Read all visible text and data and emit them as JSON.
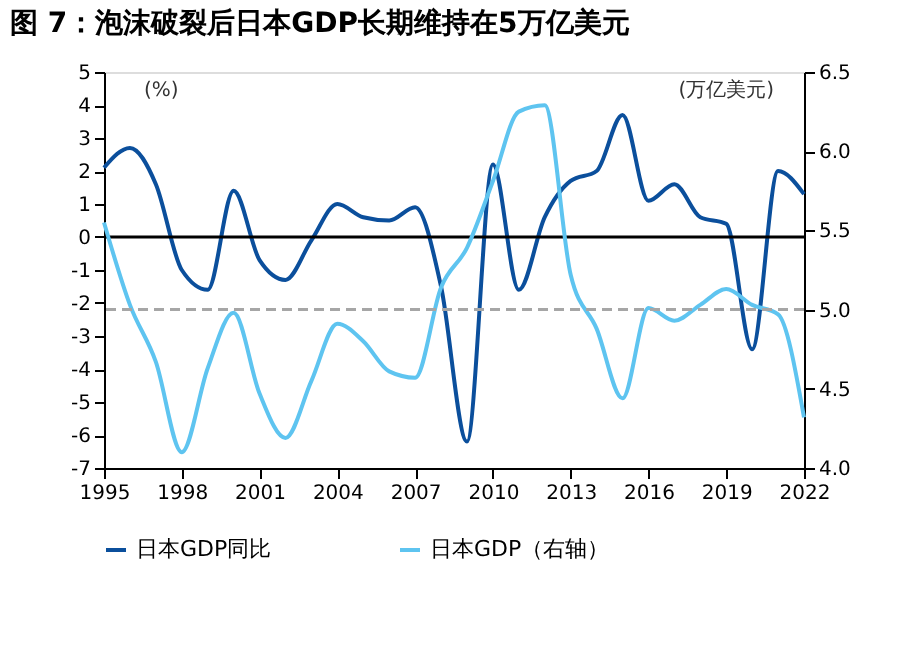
{
  "chart_data": {
    "type": "line",
    "title": "图 7：泡沫破裂后日本GDP长期维持在5万亿美元",
    "x": [
      1995,
      1996,
      1997,
      1998,
      1999,
      2000,
      2001,
      2002,
      2003,
      2004,
      2005,
      2006,
      2007,
      2008,
      2009,
      2010,
      2011,
      2012,
      2013,
      2014,
      2015,
      2016,
      2017,
      2018,
      2019,
      2020,
      2021,
      2022
    ],
    "series": [
      {
        "name": "日本GDP同比",
        "color": "#0b4f9c",
        "values": [
          2.1,
          2.7,
          1.6,
          -1.0,
          -1.6,
          1.4,
          -0.7,
          -1.3,
          -0.1,
          1.0,
          0.6,
          0.5,
          0.9,
          -1.5,
          -6.2,
          2.2,
          -1.6,
          0.6,
          1.7,
          2.0,
          3.7,
          1.1,
          1.6,
          0.6,
          0.4,
          -3.4,
          2.0,
          1.3
        ]
      },
      {
        "name": "日本GDP（右轴）",
        "color": "#5ec4f0",
        "axis": "y2",
        "values": [
          5.55,
          5.03,
          4.67,
          4.1,
          4.63,
          4.98,
          4.47,
          4.19,
          4.55,
          4.91,
          4.8,
          4.61,
          4.57,
          5.14,
          5.39,
          5.81,
          6.25,
          6.29,
          5.22,
          4.88,
          4.44,
          5.01,
          4.93,
          5.03,
          5.13,
          5.03,
          4.97,
          4.32
        ]
      }
    ],
    "xlim": [
      1995,
      2022
    ],
    "xticks": [
      1995,
      1998,
      2001,
      2004,
      2007,
      2010,
      2013,
      2016,
      2019,
      2022
    ],
    "ylim": [
      -7,
      5
    ],
    "yticks": [
      -7,
      -6,
      -5,
      -4,
      -3,
      -2,
      -1,
      0,
      1,
      2,
      3,
      4,
      5
    ],
    "y2lim": [
      4.0,
      6.5
    ],
    "y2ticks": [
      {
        "value": 4.0,
        "label": "4.0"
      },
      {
        "value": 4.5,
        "label": "4.5"
      },
      {
        "value": 5.0,
        "label": "5.0"
      },
      {
        "value": 5.5,
        "label": "5.5"
      },
      {
        "value": 6.0,
        "label": "6.0"
      },
      {
        "value": 6.5,
        "label": "6.5"
      }
    ],
    "ref_lines": [
      {
        "axis": "y",
        "value": 0,
        "color": "#000000",
        "line_style": "solid"
      },
      {
        "axis": "y2",
        "value": 5.0,
        "color": "#a6a6a6",
        "line_style": "dashed"
      }
    ],
    "annotations": [
      "(%)",
      "(万亿美元)"
    ],
    "legend": "bottom",
    "grid": false,
    "marker": "none",
    "line_style": "solid"
  }
}
